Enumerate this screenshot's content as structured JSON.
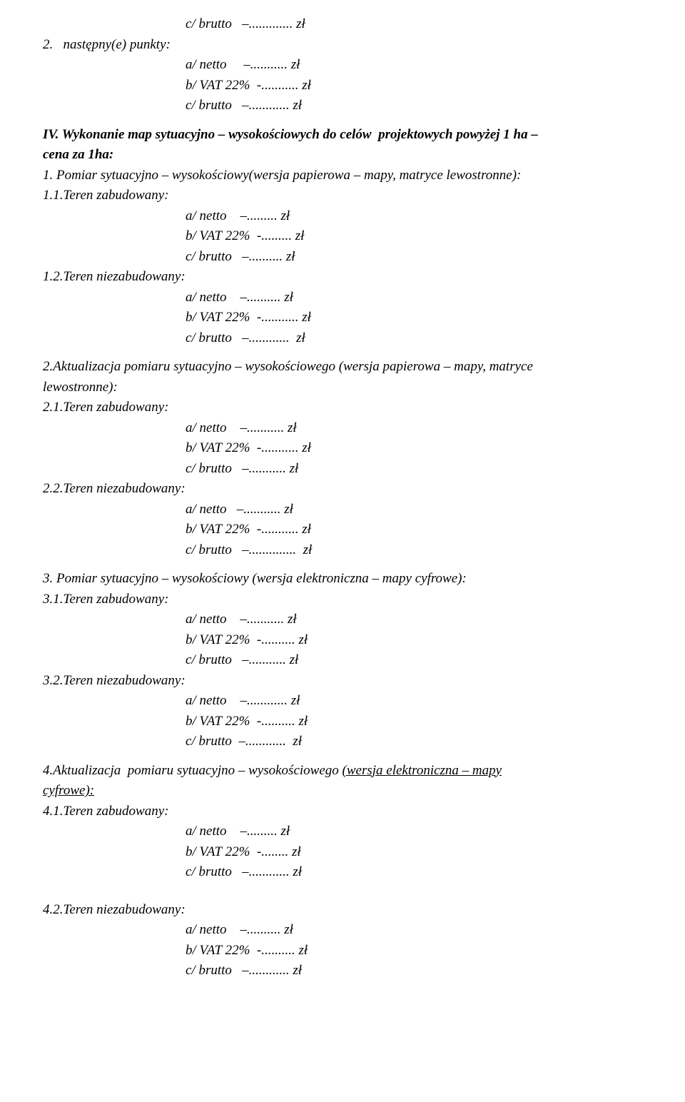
{
  "top": {
    "brutto": "c/ brutto   –............. zł",
    "punkt2": "2.   następny(e) punkty:",
    "netto": "a/ netto     –........... zł",
    "vat": "b/ VAT 22%  -........... zł",
    "brutto2": "c/ brutto   –............ zł"
  },
  "sectionIV": {
    "title1": "IV. Wykonanie map sytuacyjno – wysokościowych do celów  projektowych powyżej 1 ha –",
    "title2": "cena za 1ha:",
    "item1": "1. Pomiar sytuacyjno – wysokościowy(wersja papierowa – mapy, matryce lewostronne):",
    "item11": "1.1.Teren zabudowany:",
    "netto": "a/ netto    –......... zł",
    "vat": "b/ VAT 22%  -......... zł",
    "brutto": "c/ brutto   –.......... zł",
    "item12": "1.2.Teren niezabudowany:",
    "netto12": "a/ netto    –.......... zł",
    "vat12": "b/ VAT 22%  -........... zł",
    "brutto12": "c/ brutto   –............  zł",
    "item2a": "2.Aktualizacja pomiaru sytuacyjno – wysokościowego (wersja papierowa – mapy, matryce",
    "item2b": "lewostronne):",
    "item21": "2.1.Teren zabudowany:",
    "netto21": "a/ netto    –........... zł",
    "vat21": "b/ VAT 22%  -........... zł",
    "brutto21": "c/ brutto   –........... zł",
    "item22": "2.2.Teren niezabudowany:",
    "netto22": "a/ netto   –........... zł",
    "vat22": "b/ VAT 22%  -........... zł",
    "brutto22": "c/ brutto   –..............  zł",
    "item3": "3. Pomiar sytuacyjno – wysokościowy (wersja elektroniczna – mapy cyfrowe):",
    "item31": "3.1.Teren zabudowany:",
    "netto31": "a/ netto    –........... zł",
    "vat31": "b/ VAT 22%  -.......... zł",
    "brutto31": "c/ brutto   –........... zł",
    "item32": "3.2.Teren niezabudowany:",
    "netto32": "a/ netto    –............ zł",
    "vat32": "b/ VAT 22%  -.......... zł",
    "brutto32": "c/ brutto  –............  zł",
    "item4a": "4.Aktualizacja  pomiaru sytuacyjno – wysokościowego ",
    "item4u": "(wersja elektroniczna – mapy",
    "item4c": "cyfrowe):",
    "item41": "4.1.Teren zabudowany:",
    "netto41": "a/ netto    –......... zł",
    "vat41": "b/ VAT 22%  -........ zł",
    "brutto41": "c/ brutto   –............ zł",
    "item42": "4.2.Teren niezabudowany:",
    "netto42": "a/ netto    –.......... zł",
    "vat42": "b/ VAT 22%  -.......... zł",
    "brutto42": "c/ brutto   –............ zł"
  }
}
